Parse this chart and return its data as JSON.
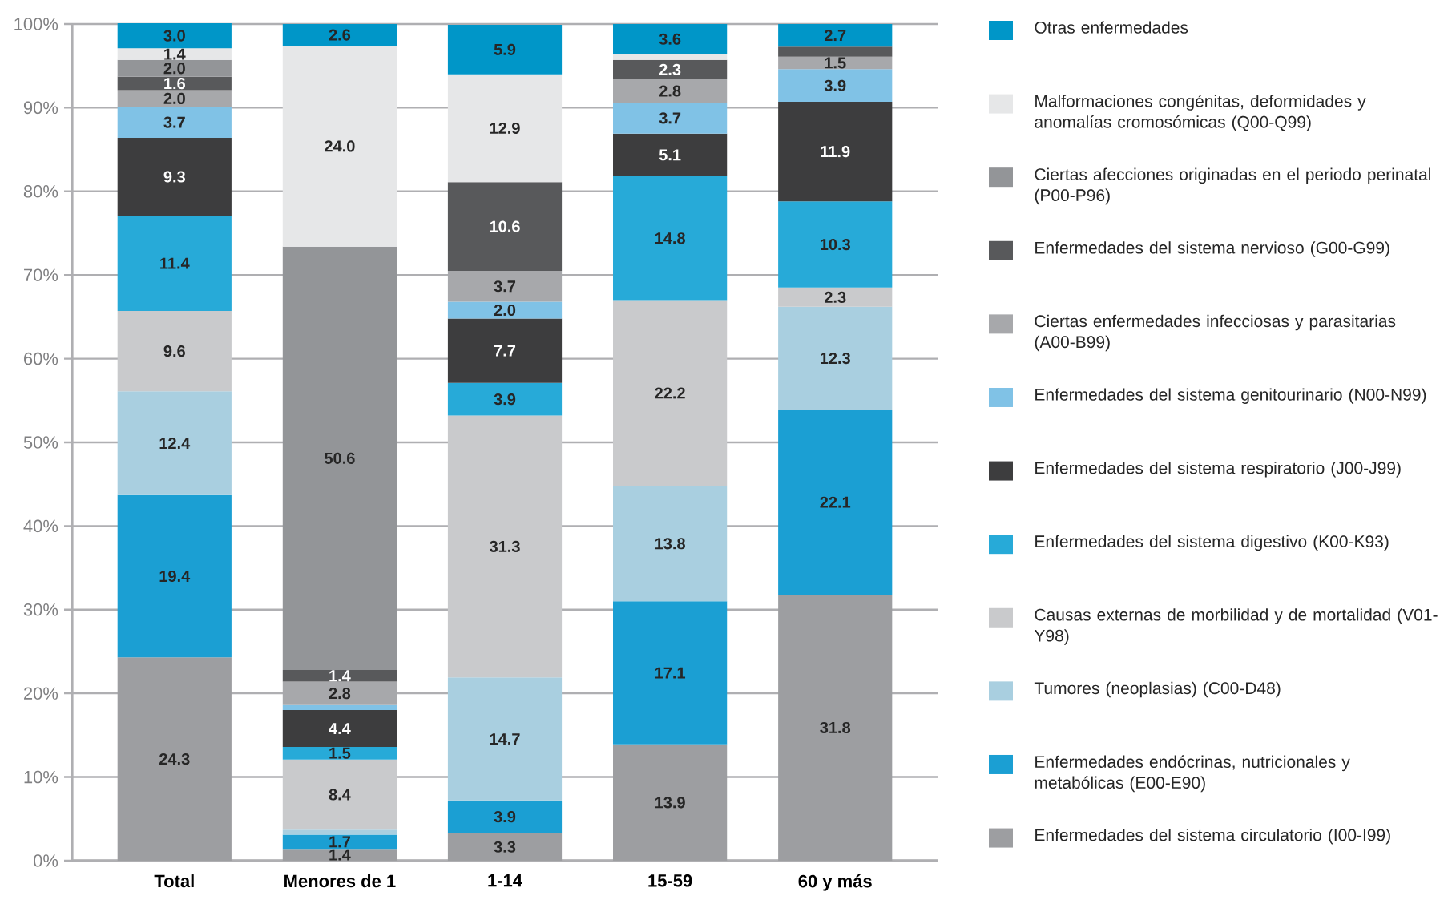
{
  "chart_data": {
    "type": "bar",
    "stacked": true,
    "categories": [
      "Total",
      "Menores de 1",
      "1-14",
      "15-59",
      "60 y más"
    ],
    "ylim": [
      0,
      100
    ],
    "yticks": [
      {
        "value": 0,
        "label": "0%"
      },
      {
        "value": 10,
        "label": "10%"
      },
      {
        "value": 20,
        "label": "20%"
      },
      {
        "value": 30,
        "label": "30%"
      },
      {
        "value": 40,
        "label": "40%"
      },
      {
        "value": 50,
        "label": "50%"
      },
      {
        "value": 60,
        "label": "60%"
      },
      {
        "value": 70,
        "label": "70%"
      },
      {
        "value": 80,
        "label": "80%"
      },
      {
        "value": 90,
        "label": "90%"
      },
      {
        "value": 100,
        "label": "100%"
      }
    ],
    "grid": "y",
    "legend": "right",
    "series": [
      {
        "name": "Enfermedades del sistema circulatorio (I00-I99)",
        "color": "#9d9ea1",
        "values": [
          24.3,
          1.4,
          3.3,
          13.9,
          31.8
        ],
        "value_labels": [
          "24.3",
          "1.4",
          "3.3",
          "13.9",
          "31.8"
        ]
      },
      {
        "name": "Enfermedades endócrinas, nutricionales y metabólicas (E00-E90)",
        "color": "#1b9fd3",
        "values": [
          19.4,
          1.7,
          3.9,
          17.1,
          22.1
        ],
        "value_labels": [
          "19.4",
          "1.7",
          "3.9",
          "17.1",
          "22.1"
        ]
      },
      {
        "name": "Tumores (neoplasias) (C00-D48)",
        "color": "#a9cfe0",
        "values": [
          12.4,
          0.6,
          14.7,
          13.8,
          12.3
        ],
        "value_labels": [
          "12.4",
          null,
          "14.7",
          "13.8",
          "12.3"
        ]
      },
      {
        "name": "Causas externas de morbilidad y de mortalidad (V01-Y98)",
        "color": "#c9cacc",
        "values": [
          9.6,
          8.4,
          31.3,
          22.2,
          2.3
        ],
        "value_labels": [
          "9.6",
          "8.4",
          "31.3",
          "22.2",
          "2.3"
        ]
      },
      {
        "name": "Enfermedades del sistema digestivo (K00-K93)",
        "color": "#27aad8",
        "values": [
          11.4,
          1.5,
          3.9,
          14.8,
          10.3
        ],
        "value_labels": [
          "11.4",
          "1.5",
          "3.9",
          "14.8",
          "10.3"
        ]
      },
      {
        "name": "Enfermedades del sistema respiratorio (J00-J99)",
        "color": "#3d3d3e",
        "values": [
          9.3,
          4.4,
          7.7,
          5.1,
          11.9
        ],
        "value_labels": [
          "9.3",
          "4.4",
          "7.7",
          "5.1",
          "11.9"
        ]
      },
      {
        "name": "Enfermedades del sistema genitourinario (N00-N99)",
        "color": "#80c2e6",
        "values": [
          3.7,
          0.6,
          2.0,
          3.7,
          3.9
        ],
        "value_labels": [
          "3.7",
          null,
          "2.0",
          "3.7",
          "3.9"
        ]
      },
      {
        "name": "Ciertas enfermedades infecciosas y parasitarias (A00-B99)",
        "color": "#a7a8ab",
        "values": [
          2.0,
          2.8,
          3.7,
          2.8,
          1.5
        ],
        "value_labels": [
          "2.0",
          "2.8",
          "3.7",
          "2.8",
          "1.5"
        ]
      },
      {
        "name": "Enfermedades del sistema nervioso (G00-G99)",
        "color": "#58595b",
        "values": [
          1.6,
          1.4,
          10.6,
          2.3,
          1.2
        ],
        "value_labels": [
          "1.6",
          "1.4",
          "10.6",
          "2.3",
          null
        ]
      },
      {
        "name": "Ciertas afecciones originadas en el periodo perinatal (P00-P96)",
        "color": "#939598",
        "values": [
          2.0,
          50.6,
          null,
          null,
          null
        ],
        "value_labels": [
          "2.0",
          "50.6",
          null,
          null,
          null
        ]
      },
      {
        "name": "Malformaciones congénitas, deformidades y anomalías cromosómicas (Q00-Q99)",
        "color": "#e6e7e8",
        "values": [
          1.4,
          24.0,
          12.9,
          0.7,
          null
        ],
        "value_labels": [
          "1.4",
          "24.0",
          "12.9",
          null,
          null
        ]
      },
      {
        "name": "Otras enfermedades",
        "color": "#0096c8",
        "values": [
          3.0,
          2.6,
          5.9,
          3.6,
          2.7
        ],
        "value_labels": [
          "3.0",
          "2.6",
          "5.9",
          "3.6",
          "2.7"
        ]
      }
    ]
  }
}
